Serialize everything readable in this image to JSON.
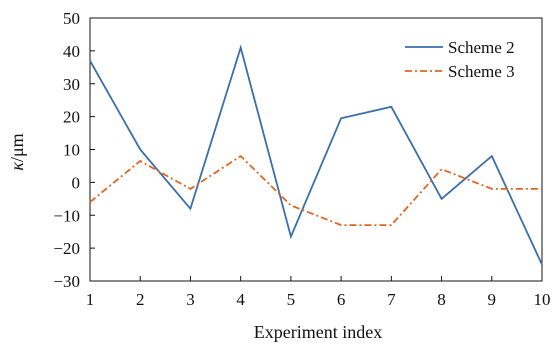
{
  "chart_data": {
    "type": "line",
    "xlabel": "Experiment index",
    "ylabel_italic": "κ",
    "ylabel_rest": "/μm",
    "x": [
      1,
      2,
      3,
      4,
      5,
      6,
      7,
      8,
      9,
      10
    ],
    "x_tick_labels": [
      "1",
      "2",
      "3",
      "4",
      "5",
      "6",
      "7",
      "8",
      "9",
      "10"
    ],
    "y_tick_values": [
      -30,
      -20,
      -10,
      0,
      10,
      20,
      30,
      40,
      50
    ],
    "y_tick_labels": [
      "−30",
      "−20",
      "−10",
      "0",
      "10",
      "20",
      "30",
      "40",
      "50"
    ],
    "xlim": [
      1,
      10
    ],
    "ylim": [
      -30,
      50
    ],
    "grid": false,
    "legend_position": "top-right",
    "series": [
      {
        "name": "Scheme 2",
        "color": "#3A6FA8",
        "dash": "solid",
        "values": [
          37,
          10,
          -8,
          41,
          -16.5,
          19.5,
          23,
          -5,
          8,
          -25
        ]
      },
      {
        "name": "Scheme 3",
        "color": "#E0651F",
        "dash": "dash-dot",
        "values": [
          -6,
          6.5,
          -2,
          8,
          -7,
          -13,
          -13,
          4,
          -2,
          -2
        ]
      }
    ]
  }
}
